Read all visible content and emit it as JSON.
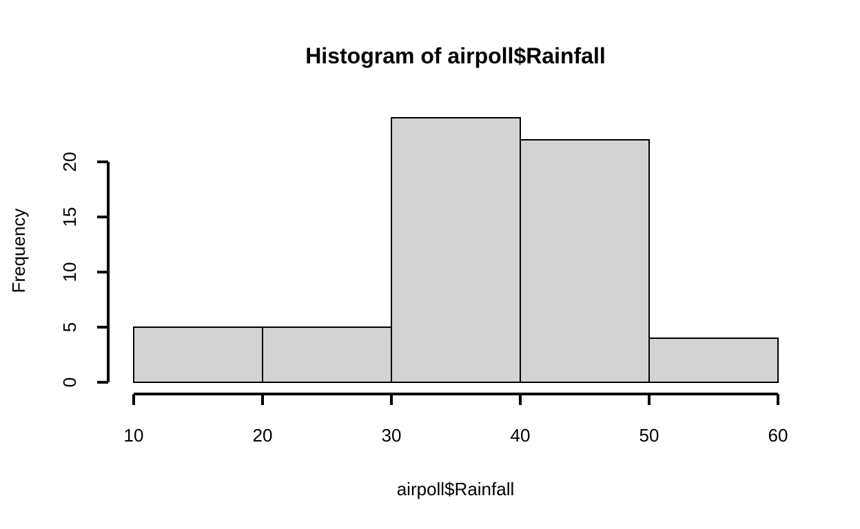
{
  "chart_data": {
    "type": "bar",
    "title": "Histogram of airpoll$Rainfall",
    "xlabel": "airpoll$Rainfall",
    "ylabel": "Frequency",
    "bins": [
      {
        "start": 10,
        "end": 20,
        "count": 5
      },
      {
        "start": 20,
        "end": 30,
        "count": 5
      },
      {
        "start": 30,
        "end": 40,
        "count": 24
      },
      {
        "start": 40,
        "end": 50,
        "count": 22
      },
      {
        "start": 50,
        "end": 60,
        "count": 4
      }
    ],
    "xticks": [
      10,
      20,
      30,
      40,
      50,
      60
    ],
    "yticks": [
      0,
      5,
      10,
      15,
      20
    ],
    "xlim": [
      10,
      60
    ],
    "ylim": [
      0,
      24
    ],
    "grid": false,
    "bar_color": "#d3d3d3",
    "edge_color": "#000000"
  }
}
